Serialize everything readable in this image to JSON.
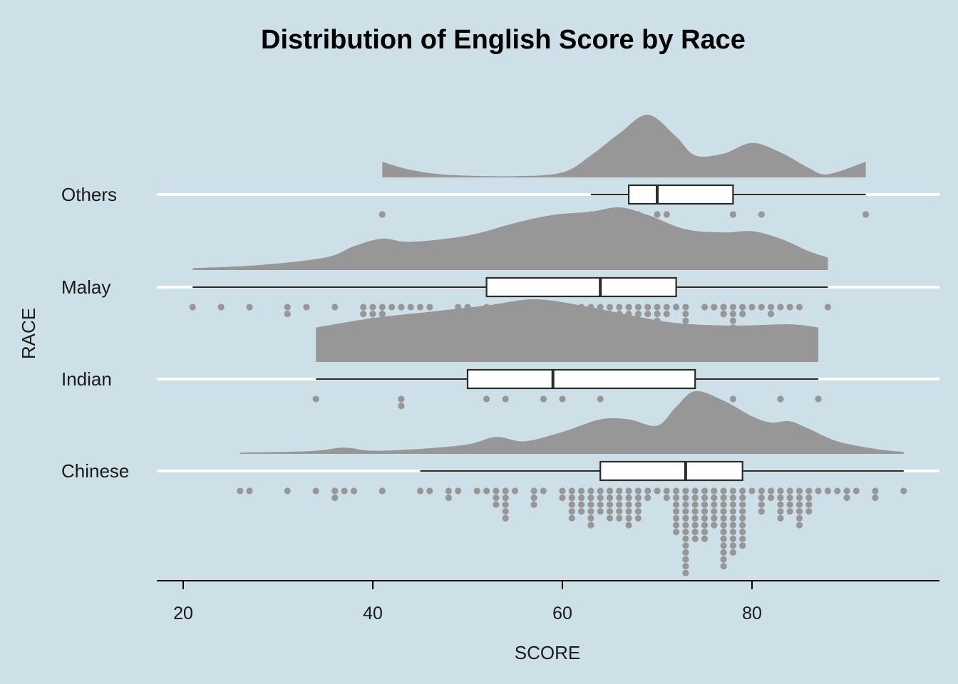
{
  "chart_data": {
    "type": "raincloud",
    "title": "Distribution of English Score by Race",
    "xlabel": "SCORE",
    "ylabel": "RACE",
    "xlim": [
      17,
      99
    ],
    "xticks": [
      20,
      40,
      60,
      80
    ],
    "grid": "horizontal-major",
    "legend": "none",
    "colors": {
      "background": "#cde0e7",
      "density": "#979797",
      "dots": "#979797",
      "box_fill": "#ffffff",
      "box_stroke": "#2b2b2b",
      "gridline": "#ffffff",
      "axis": "#000000"
    },
    "categories": [
      "Chinese",
      "Indian",
      "Malay",
      "Others"
    ],
    "groups": [
      {
        "name": "Chinese",
        "box": {
          "min": 45,
          "q1": 64,
          "median": 73,
          "q3": 79,
          "max": 96
        },
        "density": [
          [
            26,
            0.02
          ],
          [
            30,
            0.03
          ],
          [
            34,
            0.05
          ],
          [
            37,
            0.1
          ],
          [
            40,
            0.05
          ],
          [
            45,
            0.08
          ],
          [
            50,
            0.15
          ],
          [
            53,
            0.27
          ],
          [
            56,
            0.2
          ],
          [
            60,
            0.35
          ],
          [
            64,
            0.55
          ],
          [
            67,
            0.55
          ],
          [
            70,
            0.45
          ],
          [
            72,
            0.75
          ],
          [
            74,
            1.0
          ],
          [
            77,
            0.85
          ],
          [
            80,
            0.6
          ],
          [
            82,
            0.5
          ],
          [
            84,
            0.52
          ],
          [
            86,
            0.4
          ],
          [
            89,
            0.2
          ],
          [
            93,
            0.08
          ],
          [
            96,
            0.03
          ]
        ],
        "dots": [
          [
            26,
            1
          ],
          [
            27,
            1
          ],
          [
            31,
            1
          ],
          [
            34,
            1
          ],
          [
            36,
            2
          ],
          [
            37,
            1
          ],
          [
            38,
            1
          ],
          [
            41,
            1
          ],
          [
            45,
            1
          ],
          [
            46,
            1
          ],
          [
            48,
            2
          ],
          [
            49,
            1
          ],
          [
            51,
            1
          ],
          [
            52,
            1
          ],
          [
            53,
            3
          ],
          [
            54,
            5
          ],
          [
            55,
            1
          ],
          [
            57,
            3
          ],
          [
            58,
            1
          ],
          [
            60,
            2
          ],
          [
            61,
            5
          ],
          [
            62,
            4
          ],
          [
            63,
            6
          ],
          [
            64,
            4
          ],
          [
            65,
            5
          ],
          [
            66,
            5
          ],
          [
            67,
            6
          ],
          [
            68,
            5
          ],
          [
            69,
            2
          ],
          [
            70,
            1
          ],
          [
            71,
            2
          ],
          [
            72,
            7
          ],
          [
            73,
            13
          ],
          [
            74,
            8
          ],
          [
            75,
            8
          ],
          [
            76,
            6
          ],
          [
            77,
            12
          ],
          [
            78,
            10
          ],
          [
            79,
            9
          ],
          [
            80,
            1
          ],
          [
            81,
            4
          ],
          [
            82,
            2
          ],
          [
            83,
            5
          ],
          [
            84,
            4
          ],
          [
            85,
            6
          ],
          [
            86,
            4
          ],
          [
            87,
            1
          ],
          [
            88,
            1
          ],
          [
            89,
            1
          ],
          [
            90,
            2
          ],
          [
            91,
            1
          ],
          [
            93,
            2
          ],
          [
            96,
            1
          ]
        ]
      },
      {
        "name": "Indian",
        "box": {
          "min": 34,
          "q1": 50,
          "median": 59,
          "q3": 74,
          "max": 87
        },
        "density": [
          [
            34,
            0.55
          ],
          [
            40,
            0.7
          ],
          [
            46,
            0.8
          ],
          [
            52,
            0.9
          ],
          [
            57,
            1.0
          ],
          [
            62,
            0.9
          ],
          [
            67,
            0.75
          ],
          [
            72,
            0.62
          ],
          [
            78,
            0.58
          ],
          [
            84,
            0.6
          ],
          [
            87,
            0.55
          ]
        ],
        "dots": [
          [
            34,
            1
          ],
          [
            43,
            2
          ],
          [
            52,
            1
          ],
          [
            54,
            1
          ],
          [
            58,
            1
          ],
          [
            60,
            1
          ],
          [
            64,
            1
          ],
          [
            78,
            1
          ],
          [
            83,
            1
          ],
          [
            87,
            1
          ]
        ]
      },
      {
        "name": "Malay",
        "box": {
          "min": 21,
          "q1": 52,
          "median": 64,
          "q3": 72,
          "max": 88
        },
        "density": [
          [
            21,
            0.03
          ],
          [
            28,
            0.08
          ],
          [
            35,
            0.2
          ],
          [
            38,
            0.38
          ],
          [
            41,
            0.5
          ],
          [
            44,
            0.45
          ],
          [
            50,
            0.55
          ],
          [
            55,
            0.75
          ],
          [
            59,
            0.88
          ],
          [
            63,
            0.93
          ],
          [
            66,
            1.0
          ],
          [
            69,
            0.88
          ],
          [
            73,
            0.65
          ],
          [
            77,
            0.6
          ],
          [
            80,
            0.62
          ],
          [
            83,
            0.5
          ],
          [
            86,
            0.3
          ],
          [
            88,
            0.2
          ]
        ],
        "dots": [
          [
            21,
            1
          ],
          [
            24,
            1
          ],
          [
            27,
            1
          ],
          [
            31,
            2
          ],
          [
            33,
            1
          ],
          [
            36,
            1
          ],
          [
            39,
            2
          ],
          [
            40,
            3
          ],
          [
            41,
            2
          ],
          [
            42,
            1
          ],
          [
            43,
            1
          ],
          [
            44,
            1
          ],
          [
            45,
            1
          ],
          [
            46,
            1
          ],
          [
            49,
            3
          ],
          [
            50,
            3
          ],
          [
            52,
            1
          ],
          [
            53,
            1
          ],
          [
            54,
            1
          ],
          [
            55,
            1
          ],
          [
            56,
            2
          ],
          [
            57,
            4
          ],
          [
            58,
            4
          ],
          [
            59,
            2
          ],
          [
            60,
            1
          ],
          [
            61,
            2
          ],
          [
            62,
            3
          ],
          [
            63,
            1
          ],
          [
            64,
            3
          ],
          [
            65,
            4
          ],
          [
            66,
            5
          ],
          [
            67,
            3
          ],
          [
            68,
            3
          ],
          [
            69,
            2
          ],
          [
            70,
            3
          ],
          [
            71,
            2
          ],
          [
            72,
            1
          ],
          [
            73,
            3
          ],
          [
            75,
            1
          ],
          [
            76,
            1
          ],
          [
            77,
            2
          ],
          [
            78,
            4
          ],
          [
            79,
            2
          ],
          [
            80,
            1
          ],
          [
            81,
            1
          ],
          [
            82,
            2
          ],
          [
            83,
            1
          ],
          [
            84,
            1
          ],
          [
            85,
            1
          ],
          [
            88,
            1
          ]
        ]
      },
      {
        "name": "Others",
        "box": {
          "min": 63,
          "q1": 67,
          "median": 70,
          "q3": 78,
          "max": 92
        },
        "density": [
          [
            41,
            0.25
          ],
          [
            44,
            0.12
          ],
          [
            48,
            0.04
          ],
          [
            55,
            0.02
          ],
          [
            60,
            0.08
          ],
          [
            63,
            0.35
          ],
          [
            66,
            0.7
          ],
          [
            69,
            1.0
          ],
          [
            72,
            0.65
          ],
          [
            74,
            0.35
          ],
          [
            77,
            0.38
          ],
          [
            80,
            0.55
          ],
          [
            83,
            0.4
          ],
          [
            86,
            0.15
          ],
          [
            88,
            0.05
          ],
          [
            92,
            0.25
          ]
        ],
        "dots": [
          [
            41,
            1
          ],
          [
            63,
            1
          ],
          [
            67,
            1
          ],
          [
            68,
            1
          ],
          [
            70,
            1
          ],
          [
            71,
            1
          ],
          [
            78,
            1
          ],
          [
            81,
            1
          ],
          [
            92,
            1
          ]
        ]
      }
    ]
  }
}
